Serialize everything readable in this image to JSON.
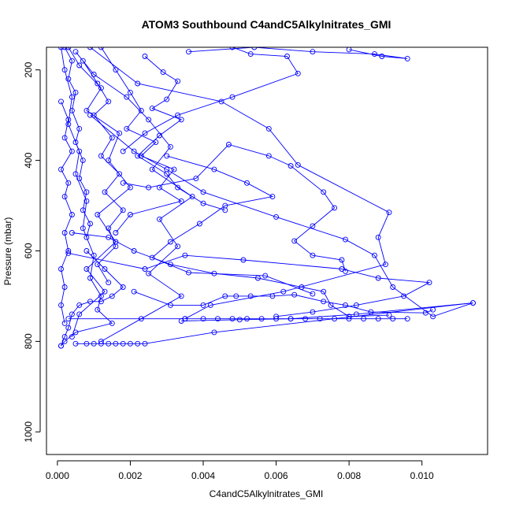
{
  "chart_data": {
    "type": "scatter",
    "title": "ATOM3 Southbound C4andC5Alkylnitrates_GMI",
    "xlabel": "C4andC5Alkylnitrates_GMI",
    "ylabel": "Pressure (mbar)",
    "xlim": [
      -0.0003,
      0.0118
    ],
    "ylim": [
      1050,
      150
    ],
    "y_axis_reversed": true,
    "x_ticks": [
      "0.000",
      "0.002",
      "0.004",
      "0.006",
      "0.008",
      "0.010"
    ],
    "x_tick_values": [
      0,
      0.002,
      0.004,
      0.006,
      0.008,
      0.01
    ],
    "y_ticks": [
      "200",
      "400",
      "600",
      "800",
      "1000"
    ],
    "y_tick_values": [
      200,
      400,
      600,
      800,
      1000
    ],
    "marker": "open-circle",
    "color": "#0000ff",
    "grid": false,
    "series": [
      {
        "values": [
          [
            0.0001,
            150
          ],
          [
            0.0002,
            200
          ],
          [
            0.0004,
            260
          ],
          [
            0.0003,
            320
          ],
          [
            0.0006,
            380
          ],
          [
            0.0005,
            430
          ],
          [
            0.0008,
            490
          ],
          [
            0.0007,
            550
          ],
          [
            0.001,
            610
          ],
          [
            0.0009,
            660
          ],
          [
            0.0012,
            700
          ],
          [
            0.0011,
            730
          ],
          [
            0.0015,
            760
          ],
          [
            0.0005,
            780
          ],
          [
            0.0002,
            800
          ],
          [
            0.0001,
            810
          ]
        ]
      },
      {
        "values": [
          [
            0.0003,
            150
          ],
          [
            0.0006,
            190
          ],
          [
            0.0012,
            240
          ],
          [
            0.0008,
            290
          ],
          [
            0.0017,
            340
          ],
          [
            0.0014,
            400
          ],
          [
            0.002,
            460
          ],
          [
            0.0011,
            520
          ],
          [
            0.0016,
            580
          ],
          [
            0.0008,
            640
          ],
          [
            0.0013,
            690
          ],
          [
            0.0006,
            740
          ],
          [
            0.0004,
            790
          ]
        ]
      },
      {
        "values": [
          [
            0.0005,
            160
          ],
          [
            0.001,
            210
          ],
          [
            0.0019,
            260
          ],
          [
            0.0025,
            310
          ],
          [
            0.0031,
            370
          ],
          [
            0.0026,
            420
          ],
          [
            0.0037,
            480
          ],
          [
            0.0028,
            530
          ],
          [
            0.0033,
            590
          ],
          [
            0.0025,
            650
          ],
          [
            0.0034,
            700
          ],
          [
            0.0023,
            750
          ],
          [
            0.0012,
            800
          ]
        ]
      },
      {
        "values": [
          [
            0.0009,
            150
          ],
          [
            0.0022,
            230
          ],
          [
            0.0045,
            270
          ],
          [
            0.0058,
            330
          ],
          [
            0.0066,
            410
          ],
          [
            0.0091,
            515
          ],
          [
            0.0088,
            570
          ],
          [
            0.009,
            630
          ],
          [
            0.0062,
            690
          ],
          [
            0.0042,
            720
          ],
          [
            0.0035,
            750
          ]
        ]
      },
      {
        "values": [
          [
            0.0036,
            160
          ],
          [
            0.0054,
            150
          ],
          [
            0.007,
            160
          ],
          [
            0.0087,
            165
          ],
          [
            0.0096,
            175
          ],
          [
            0.0089,
            170
          ],
          [
            0.008,
            155
          ]
        ]
      },
      {
        "values": [
          [
            0.0048,
            150
          ],
          [
            0.0053,
            165
          ],
          [
            0.0063,
            170
          ],
          [
            0.0066,
            208
          ],
          [
            0.0048,
            260
          ],
          [
            0.0033,
            300
          ],
          [
            0.0024,
            340
          ],
          [
            0.0018,
            380
          ]
        ]
      },
      {
        "values": [
          [
            0.0009,
            300
          ],
          [
            0.0021,
            380
          ],
          [
            0.003,
            420
          ],
          [
            0.004,
            470
          ],
          [
            0.006,
            525
          ],
          [
            0.0079,
            575
          ],
          [
            0.0087,
            610
          ],
          [
            0.0092,
            680
          ],
          [
            0.0103,
            745
          ],
          [
            0.0114,
            715
          ],
          [
            0.0082,
            740
          ],
          [
            0.0064,
            750
          ],
          [
            0.005,
            752
          ],
          [
            0.0034,
            755
          ]
        ]
      },
      {
        "values": [
          [
            0.0003,
            605
          ],
          [
            0.0024,
            640
          ],
          [
            0.0035,
            610
          ],
          [
            0.0051,
            620
          ],
          [
            0.0078,
            640
          ],
          [
            0.0088,
            660
          ],
          [
            0.0102,
            670
          ],
          [
            0.0095,
            700
          ],
          [
            0.0082,
            720
          ],
          [
            0.007,
            735
          ],
          [
            0.006,
            745
          ]
        ]
      },
      {
        "values": [
          [
            0.0021,
            690
          ],
          [
            0.0031,
            720
          ],
          [
            0.004,
            720
          ],
          [
            0.0046,
            700
          ],
          [
            0.0049,
            700
          ],
          [
            0.0053,
            700
          ],
          [
            0.0059,
            700
          ],
          [
            0.0065,
            697
          ],
          [
            0.0073,
            712
          ],
          [
            0.0079,
            720
          ],
          [
            0.0086,
            735
          ],
          [
            0.0101,
            737
          ],
          [
            0.0103,
            730
          ]
        ]
      },
      {
        "values": [
          [
            0.0003,
            750
          ],
          [
            0.0035,
            750
          ],
          [
            0.004,
            750
          ],
          [
            0.0044,
            750
          ],
          [
            0.0048,
            750
          ],
          [
            0.0052,
            750
          ],
          [
            0.0056,
            750
          ],
          [
            0.006,
            750
          ],
          [
            0.0064,
            750
          ],
          [
            0.0068,
            750
          ],
          [
            0.0072,
            750
          ],
          [
            0.0076,
            750
          ],
          [
            0.008,
            750
          ],
          [
            0.0084,
            750
          ],
          [
            0.0088,
            750
          ],
          [
            0.0092,
            750
          ],
          [
            0.0096,
            750
          ]
        ]
      },
      {
        "values": [
          [
            0.0005,
            805
          ],
          [
            0.0008,
            805
          ],
          [
            0.001,
            805
          ],
          [
            0.0012,
            805
          ],
          [
            0.0014,
            805
          ],
          [
            0.0016,
            805
          ],
          [
            0.0018,
            805
          ],
          [
            0.002,
            805
          ],
          [
            0.0022,
            805
          ],
          [
            0.0024,
            805
          ],
          [
            0.0043,
            780
          ],
          [
            0.0114,
            715
          ]
        ]
      },
      {
        "values": [
          [
            0.0001,
            810
          ],
          [
            0.0002,
            790
          ],
          [
            0.0003,
            770
          ],
          [
            0.0004,
            740
          ],
          [
            0.0006,
            720
          ],
          [
            0.0009,
            712
          ],
          [
            0.0012,
            712
          ],
          [
            0.0015,
            700
          ],
          [
            0.0018,
            680
          ],
          [
            0.0013,
            640
          ],
          [
            0.0008,
            600
          ]
        ]
      },
      {
        "values": [
          [
            0.0002,
            150
          ],
          [
            0.0004,
            180
          ],
          [
            0.0003,
            220
          ],
          [
            0.0005,
            250
          ],
          [
            0.0004,
            290
          ],
          [
            0.0006,
            330
          ],
          [
            0.0005,
            360
          ],
          [
            0.0007,
            400
          ],
          [
            0.0006,
            440
          ],
          [
            0.0008,
            470
          ],
          [
            0.0007,
            510
          ],
          [
            0.0009,
            540
          ],
          [
            0.0008,
            570
          ]
        ]
      },
      {
        "values": [
          [
            0.0012,
            150
          ],
          [
            0.0016,
            200
          ],
          [
            0.002,
            250
          ],
          [
            0.0023,
            290
          ],
          [
            0.0019,
            330
          ],
          [
            0.0027,
            360
          ],
          [
            0.0023,
            390
          ],
          [
            0.0032,
            420
          ],
          [
            0.0028,
            460
          ],
          [
            0.0034,
            490
          ],
          [
            0.002,
            520
          ],
          [
            0.0016,
            560
          ]
        ]
      },
      {
        "values": [
          [
            0.003,
            390
          ],
          [
            0.0043,
            420
          ],
          [
            0.0052,
            450
          ],
          [
            0.0059,
            480
          ],
          [
            0.0046,
            500
          ],
          [
            0.0039,
            540
          ],
          [
            0.0031,
            580
          ],
          [
            0.0026,
            615
          ],
          [
            0.0036,
            648
          ],
          [
            0.0057,
            655
          ],
          [
            0.007,
            695
          ]
        ]
      },
      {
        "values": [
          [
            0.0018,
            450
          ],
          [
            0.0025,
            460
          ],
          [
            0.0038,
            440
          ],
          [
            0.0047,
            365
          ],
          [
            0.0058,
            390
          ],
          [
            0.0064,
            412
          ],
          [
            0.0073,
            470
          ],
          [
            0.0076,
            505
          ],
          [
            0.007,
            545
          ],
          [
            0.0065,
            578
          ],
          [
            0.007,
            610
          ],
          [
            0.0078,
            620
          ],
          [
            0.0079,
            645
          ]
        ]
      },
      {
        "values": [
          [
            0.0004,
            560
          ],
          [
            0.0014,
            570
          ],
          [
            0.0021,
            600
          ],
          [
            0.0031,
            630
          ],
          [
            0.0043,
            650
          ],
          [
            0.0055,
            660
          ],
          [
            0.0067,
            680
          ],
          [
            0.0073,
            690
          ],
          [
            0.0075,
            720
          ],
          [
            0.008,
            745
          ],
          [
            0.0091,
            742
          ]
        ]
      },
      {
        "values": [
          [
            0.0001,
            270
          ],
          [
            0.0003,
            310
          ],
          [
            0.0002,
            350
          ],
          [
            0.0004,
            380
          ],
          [
            0.0001,
            420
          ],
          [
            0.0003,
            450
          ],
          [
            0.0002,
            480
          ],
          [
            0.0004,
            520
          ],
          [
            0.0002,
            560
          ],
          [
            0.0003,
            600
          ],
          [
            0.0001,
            640
          ],
          [
            0.0002,
            680
          ],
          [
            0.0001,
            720
          ],
          [
            0.0002,
            760
          ]
        ]
      },
      {
        "values": [
          [
            0.0007,
            180
          ],
          [
            0.0011,
            230
          ],
          [
            0.0014,
            270
          ],
          [
            0.001,
            300
          ],
          [
            0.0015,
            350
          ],
          [
            0.0012,
            390
          ],
          [
            0.0017,
            430
          ],
          [
            0.0013,
            470
          ],
          [
            0.0018,
            510
          ],
          [
            0.0014,
            550
          ],
          [
            0.0016,
            590
          ],
          [
            0.0011,
            630
          ],
          [
            0.0014,
            670
          ]
        ]
      },
      {
        "values": [
          [
            0.0024,
            170
          ],
          [
            0.0029,
            205
          ],
          [
            0.0033,
            225
          ],
          [
            0.003,
            265
          ],
          [
            0.0026,
            285
          ],
          [
            0.0034,
            310
          ],
          [
            0.0028,
            345
          ],
          [
            0.0022,
            390
          ],
          [
            0.003,
            430
          ],
          [
            0.0033,
            460
          ],
          [
            0.004,
            495
          ],
          [
            0.0046,
            510
          ]
        ]
      }
    ]
  }
}
